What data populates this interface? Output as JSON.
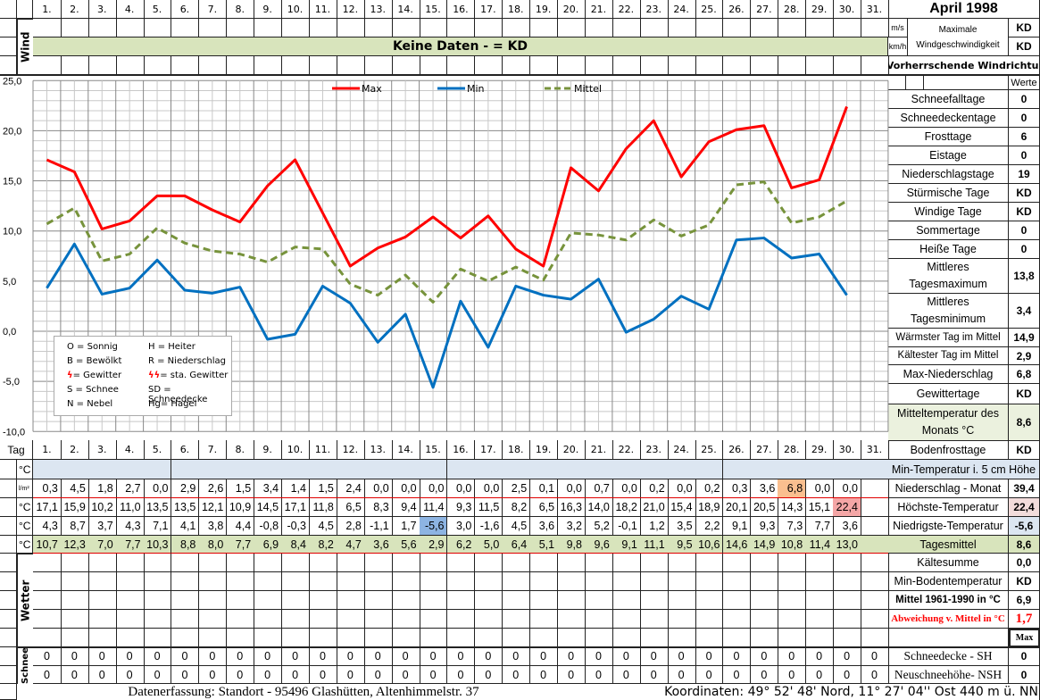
{
  "header": {
    "title": "April 1998",
    "wind_label": "Wind",
    "no_data_banner": "Keine Daten -  = KD",
    "unit_ms": "m/s",
    "unit_kmh": "km/h",
    "max_wind_label": "Maximale Windgeschwindigkeit",
    "max_wind_ms": "KD",
    "max_wind_kmh": "KD",
    "wind_direction_label": "← Vorherrschende Windrichtung"
  },
  "days": [
    "1.",
    "2.",
    "3.",
    "4.",
    "5.",
    "6.",
    "7.",
    "8.",
    "9.",
    "10.",
    "11.",
    "12.",
    "13.",
    "14.",
    "15.",
    "16.",
    "17.",
    "18.",
    "19.",
    "20.",
    "21.",
    "22.",
    "23.",
    "24.",
    "25.",
    "26.",
    "27.",
    "28.",
    "29.",
    "30.",
    "31."
  ],
  "stats_panel": {
    "values_header": "Werte",
    "items": [
      {
        "label": "Schneefalltage",
        "value": "0"
      },
      {
        "label": "Schneedeckentage",
        "value": "0"
      },
      {
        "label": "Frosttage",
        "value": "6"
      },
      {
        "label": "Eistage",
        "value": "0"
      },
      {
        "label": "Niederschlagstage",
        "value": "19"
      },
      {
        "label": "Stürmische Tage",
        "value": "KD"
      },
      {
        "label": "Windige Tage",
        "value": "KD"
      },
      {
        "label": "Sommertage",
        "value": "0"
      },
      {
        "label": "Heiße Tage",
        "value": "0"
      },
      {
        "label": "Mittleres Tagesmaximum",
        "value": "13,8"
      },
      {
        "label": "Mittleres Tagesminimum",
        "value": "3,4"
      },
      {
        "label": "Wärmster Tag im Mittel",
        "value": "14,9"
      },
      {
        "label": "Kältester Tag im Mittel",
        "value": "2,9"
      },
      {
        "label": "Max-Niederschlag",
        "value": "6,8"
      },
      {
        "label": "Gewittertage",
        "value": "KD"
      },
      {
        "label": "Mitteltemperatur des Monats °C",
        "value": "8,6"
      }
    ]
  },
  "weather_legend": [
    "O = Sonnig",
    "H = Heiter",
    "B = Bewölkt",
    "R = Niederschlag",
    "= Gewitter",
    "= sta. Gewitter",
    "S = Schnee",
    "SD = Schneedecke",
    "N = Nebel",
    "Hg= Hagel"
  ],
  "table": {
    "day_label": "Tag",
    "unit_c": "°C",
    "unit_precip": "l/m²",
    "weather_label": "Wetter",
    "snow_label": "Schnee",
    "snow_depth": [
      "0",
      "0",
      "0",
      "0",
      "0",
      "0",
      "0",
      "0",
      "0",
      "0",
      "0",
      "0",
      "0",
      "0",
      "0",
      "0",
      "0",
      "0",
      "0",
      "0",
      "0",
      "0",
      "0",
      "0",
      "0",
      "0",
      "0",
      "0",
      "0",
      "0",
      "0"
    ],
    "new_snow": [
      "0",
      "0",
      "0",
      "0",
      "0",
      "0",
      "0",
      "0",
      "0",
      "0",
      "0",
      "0",
      "0",
      "0",
      "0",
      "0",
      "0",
      "0",
      "0",
      "0",
      "0",
      "0",
      "0",
      "0",
      "0",
      "0",
      "0",
      "0",
      "0",
      "0",
      "0"
    ],
    "highlight_colors": {
      "min_extreme": "#8db4e2",
      "max_precip": "#fabf8f",
      "max_extreme": "#f4a6a6",
      "mean_row": "#d8e4bc",
      "ground_row": "#dce6f1"
    }
  },
  "summary_panel": [
    {
      "label": "Bodenfrosttage",
      "value": "KD"
    },
    {
      "label": "Min-Temperatur i. 5 cm Höhe",
      "value": ""
    },
    {
      "label": "Niederschlag - Monat",
      "value": "39,4"
    },
    {
      "label": "Höchste-Temperatur",
      "value": "22,4"
    },
    {
      "label": "Niedrigste-Temperatur",
      "value": "-5,6"
    },
    {
      "label": "Tagesmittel",
      "value": "8,6"
    },
    {
      "label": "Kältesumme",
      "value": "0,0"
    },
    {
      "label": "Min-Bodentemperatur",
      "value": "KD"
    },
    {
      "label": "Mittel 1961-1990 in °C",
      "value": "6,9"
    },
    {
      "label": "Abweichung v. Mittel in °C",
      "value": "1,7"
    },
    {
      "label": "",
      "value": "Max"
    },
    {
      "label": "Schneedecke -   SH",
      "value": "0"
    },
    {
      "label": "Neuschneehöhe- NSH",
      "value": "0"
    }
  ],
  "footer": {
    "location": "Datenerfassung:  Standort -  95496  Glashütten, Altenhimmelstr. 37",
    "coordinates": "Koordinaten:  49° 52' 48' Nord,   11° 27' 04'' Ost   440 m ü. NN"
  },
  "chart_data": {
    "type": "line",
    "x": [
      1,
      2,
      3,
      4,
      5,
      6,
      7,
      8,
      9,
      10,
      11,
      12,
      13,
      14,
      15,
      16,
      17,
      18,
      19,
      20,
      21,
      22,
      23,
      24,
      25,
      26,
      27,
      28,
      29,
      30
    ],
    "ylim": [
      -10,
      25
    ],
    "yticks": [
      "25,0",
      "20,0",
      "15,0",
      "10,0",
      "5,0",
      "0,0",
      "-5,0",
      "-10,0"
    ],
    "grid": true,
    "legend_position": "top-center",
    "series": [
      {
        "name": "Max",
        "color": "#ff0000",
        "dash": false,
        "values": [
          17.1,
          15.9,
          10.2,
          11.0,
          13.5,
          13.5,
          12.1,
          10.9,
          14.5,
          17.1,
          11.8,
          6.5,
          8.3,
          9.4,
          11.4,
          9.3,
          11.5,
          8.2,
          6.5,
          16.3,
          14.0,
          18.2,
          21.0,
          15.4,
          18.9,
          20.1,
          20.5,
          14.3,
          15.1,
          22.4
        ]
      },
      {
        "name": "Min",
        "color": "#0070c0",
        "dash": false,
        "values": [
          4.3,
          8.7,
          3.7,
          4.3,
          7.1,
          4.1,
          3.8,
          4.4,
          -0.8,
          -0.3,
          4.5,
          2.8,
          -1.1,
          1.7,
          -5.6,
          3.0,
          -1.6,
          4.5,
          3.6,
          3.2,
          5.2,
          -0.1,
          1.2,
          3.5,
          2.2,
          9.1,
          9.3,
          7.3,
          7.7,
          3.6
        ]
      },
      {
        "name": "Mittel",
        "color": "#77933c",
        "dash": true,
        "values": [
          10.7,
          12.3,
          7.0,
          7.7,
          10.3,
          8.8,
          8.0,
          7.7,
          6.9,
          8.4,
          8.2,
          4.7,
          3.6,
          5.6,
          2.9,
          6.2,
          5.0,
          6.4,
          5.1,
          9.8,
          9.6,
          9.1,
          11.1,
          9.5,
          10.6,
          14.6,
          14.9,
          10.8,
          11.4,
          13.0
        ]
      }
    ],
    "precipitation": [
      0.3,
      4.5,
      1.8,
      2.7,
      0.0,
      2.9,
      2.6,
      1.5,
      3.4,
      1.4,
      1.5,
      2.4,
      0.0,
      0.0,
      0.0,
      0.0,
      0.0,
      2.5,
      0.1,
      0.0,
      0.7,
      0.0,
      0.2,
      0.0,
      0.2,
      0.3,
      3.6,
      6.8,
      0.0,
      0.0
    ]
  }
}
